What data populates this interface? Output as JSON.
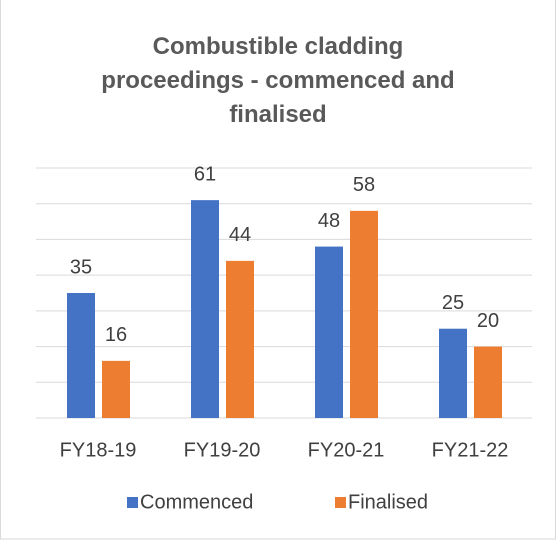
{
  "chart_data": {
    "type": "bar",
    "title": "Combustible cladding proceedings - commenced and finalised",
    "categories": [
      "FY18-19",
      "FY19-20",
      "FY20-21",
      "FY21-22"
    ],
    "series": [
      {
        "name": "Commenced",
        "color": "#4472c4",
        "values": [
          35,
          61,
          48,
          25
        ]
      },
      {
        "name": "Finalised",
        "color": "#ed7d31",
        "values": [
          16,
          44,
          58,
          20
        ]
      }
    ],
    "ylim": [
      0,
      70
    ],
    "yticks": [
      0,
      10,
      20,
      30,
      40,
      50,
      60,
      70
    ],
    "grid": true,
    "legend": "bottom"
  }
}
